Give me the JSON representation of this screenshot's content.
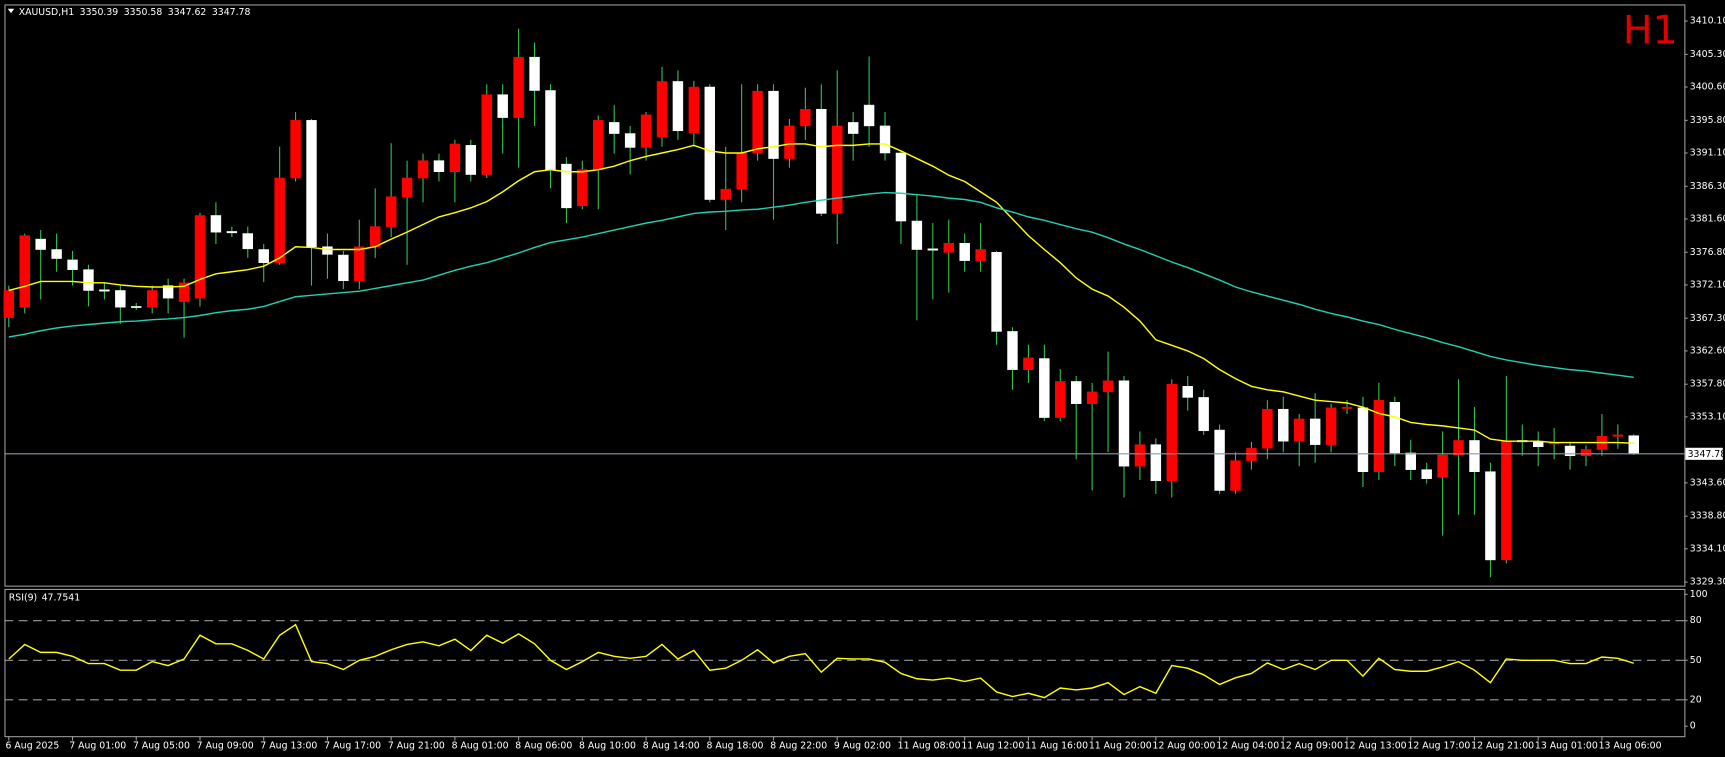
{
  "chart_data": [
    {
      "type": "candlestick",
      "title": "XAUUSD,H1",
      "timeframe_badge": "H1",
      "categories": [
        "6 Aug 2025",
        null,
        null,
        null,
        "7 Aug 01:00",
        null,
        null,
        null,
        "7 Aug 05:00",
        null,
        null,
        null,
        "7 Aug 09:00",
        null,
        null,
        null,
        "7 Aug 13:00",
        null,
        null,
        null,
        "7 Aug 17:00",
        null,
        null,
        null,
        "7 Aug 21:00",
        null,
        null,
        null,
        "8 Aug 01:00",
        null,
        null,
        null,
        "8 Aug 06:00",
        null,
        null,
        null,
        "8 Aug 10:00",
        null,
        null,
        null,
        "8 Aug 14:00",
        null,
        null,
        null,
        "8 Aug 18:00",
        null,
        null,
        null,
        "8 Aug 22:00",
        null,
        null,
        null,
        "9 Aug 02:00",
        null,
        null,
        null,
        "11 Aug 08:00",
        null,
        null,
        null,
        "11 Aug 12:00",
        null,
        null,
        null,
        "11 Aug 16:00",
        null,
        null,
        null,
        "11 Aug 20:00",
        null,
        null,
        null,
        "12 Aug 00:00",
        null,
        null,
        null,
        "12 Aug 04:00",
        null,
        null,
        null,
        "12 Aug 09:00",
        null,
        null,
        null,
        "12 Aug 13:00",
        null,
        null,
        null,
        "12 Aug 17:00",
        null,
        null,
        null,
        "12 Aug 21:00",
        null,
        null,
        null,
        "13 Aug 01:00",
        null,
        null,
        null,
        "13 Aug 06:00",
        null,
        null
      ],
      "open": [
        3367.4,
        3368.9,
        3378.7,
        3377.2,
        3375.7,
        3374.3,
        3371.4,
        3371.3,
        3369,
        3368.9,
        3372,
        3369.7,
        3370.2,
        3382.1,
        3379.8,
        3379.5,
        3377.2,
        3375.3,
        3387.5,
        3395.8,
        3377.6,
        3376.4,
        3372.7,
        3377.6,
        3380.5,
        3384.8,
        3387.5,
        3390,
        3388.4,
        3392.2,
        3388,
        3399.5,
        3396.2,
        3404.9,
        3400.1,
        3389.5,
        3383.5,
        3388.7,
        3395.5,
        3393.9,
        3391.9,
        3393.4,
        3401.4,
        3394,
        3400.6,
        3384.4,
        3385.9,
        3391.1,
        3400,
        3390.3,
        3395,
        3397.4,
        3382.4,
        3395.5,
        3398,
        3395,
        3391.1,
        3381.3,
        3377.3,
        3376.8,
        3378.1,
        3375.6,
        3376.8,
        3365.4,
        3359.9,
        3361.5,
        3353,
        3358.2,
        3355,
        3356.7,
        3358.3,
        3346,
        3349.1,
        3343.9,
        3357.5,
        3355.9,
        3351.2,
        3342.5,
        3346.8,
        3348.6,
        3354.2,
        3349.6,
        3352.8,
        3349.1,
        3354.3,
        3354.4,
        3345.2,
        3355.2,
        3347.9,
        3345.5,
        3344.4,
        3347.6,
        3349.7,
        3345.2,
        3332.5,
        3349.7,
        3349.6,
        3349.2,
        3348.9,
        3347.5,
        3348.4,
        3350.3,
        3350.39
      ],
      "high": [
        3372,
        3379.5,
        3380,
        3379.5,
        3377,
        3375,
        3372.5,
        3372,
        3369.5,
        3372,
        3373,
        3373,
        3382.5,
        3384,
        3380.5,
        3380.5,
        3378,
        3392,
        3397,
        3396,
        3379.5,
        3377,
        3381.5,
        3386,
        3392.5,
        3390,
        3391,
        3391,
        3393,
        3393,
        3401,
        3401,
        3409,
        3407,
        3401,
        3390.5,
        3390,
        3396.5,
        3398,
        3395,
        3397,
        3403.5,
        3403,
        3401.5,
        3401,
        3392,
        3401,
        3401,
        3401,
        3396,
        3400.5,
        3401,
        3403,
        3397,
        3405,
        3397,
        3391.5,
        3385,
        3381,
        3381.5,
        3379.5,
        3381,
        3377,
        3366,
        3363.5,
        3363.5,
        3360,
        3359,
        3358,
        3362.5,
        3359,
        3351,
        3350,
        3358.5,
        3359,
        3357,
        3352,
        3348,
        3349.5,
        3355.5,
        3356,
        3353.5,
        3356.5,
        3355,
        3355.5,
        3356,
        3358,
        3356,
        3349.8,
        3346.5,
        3351,
        3358.5,
        3354.5,
        3346.5,
        3359,
        3352,
        3351,
        3351.5,
        3349.5,
        3349,
        3353.5,
        3352,
        3350.58
      ],
      "low": [
        3366,
        3368,
        3370,
        3374,
        3372,
        3369,
        3370,
        3366.5,
        3368.5,
        3368,
        3368,
        3364.5,
        3369,
        3378,
        3379,
        3376,
        3372.5,
        3375,
        3387,
        3372,
        3373,
        3371.5,
        3371.5,
        3376,
        3379,
        3375,
        3384,
        3387,
        3384,
        3387,
        3387.5,
        3391,
        3389,
        3395,
        3386,
        3381,
        3383,
        3383,
        3391,
        3388,
        3390,
        3392,
        3393,
        3392,
        3384,
        3380,
        3384,
        3390,
        3381.5,
        3389,
        3393,
        3382,
        3378,
        3390,
        3392,
        3390,
        3378,
        3367,
        3370,
        3371,
        3374,
        3374,
        3363.5,
        3357,
        3358,
        3352.5,
        3352.5,
        3347,
        3342.5,
        3348,
        3341.5,
        3344,
        3342,
        3341.5,
        3354,
        3350.5,
        3342,
        3342,
        3345.5,
        3347,
        3348,
        3346,
        3346.5,
        3348,
        3353.5,
        3343,
        3344,
        3346,
        3344,
        3343.5,
        3336,
        3339,
        3339,
        3330,
        3332,
        3347.5,
        3346,
        3347,
        3345.5,
        3346,
        3347.5,
        3348.5,
        3347.62
      ],
      "close": [
        3371.3,
        3379.2,
        3377.2,
        3375.9,
        3374.3,
        3371.3,
        3371.2,
        3368.9,
        3368.9,
        3371.3,
        3370.2,
        3372.4,
        3382.1,
        3379.7,
        3379.6,
        3377.3,
        3375.3,
        3387.5,
        3395.8,
        3377.6,
        3376.5,
        3372.7,
        3377.6,
        3380.5,
        3384.8,
        3387.5,
        3390,
        3388.4,
        3392.4,
        3388,
        3399.5,
        3396.2,
        3404.9,
        3400.1,
        3388.7,
        3383.2,
        3388.7,
        3395.8,
        3393.9,
        3391.9,
        3396.6,
        3401.4,
        3394.3,
        3400.6,
        3384.4,
        3385.9,
        3391.1,
        3400,
        3390.3,
        3395,
        3397.4,
        3382.4,
        3395,
        3393.9,
        3395,
        3391.1,
        3381.3,
        3377.2,
        3377.1,
        3378.1,
        3375.6,
        3377.2,
        3365.4,
        3359.9,
        3361.6,
        3353,
        3358.2,
        3355,
        3356.7,
        3358.3,
        3346,
        3349.1,
        3343.9,
        3357.8,
        3355.9,
        3351.1,
        3342.5,
        3346.8,
        3348.6,
        3354.2,
        3349.6,
        3352.8,
        3349.1,
        3354.4,
        3354.5,
        3345.2,
        3355.5,
        3347.9,
        3345.5,
        3344.2,
        3347.6,
        3349.7,
        3345.2,
        3332.5,
        3349.6,
        3349.5,
        3348.8,
        3349.4,
        3347.5,
        3348.4,
        3350.3,
        3350.5,
        3347.78
      ],
      "up_color": "#ff0000",
      "down_color": "#ffffff",
      "wick_color": "#33c24d",
      "series": [
        {
          "color": "#ffff00",
          "values": [
            3371.3,
            3371.9,
            3372.6,
            3372.6,
            3372.6,
            3372.4,
            3372.4,
            3372.1,
            3371.9,
            3371.8,
            3371.8,
            3371.9,
            3372.9,
            3373.7,
            3374.0,
            3374.3,
            3374.8,
            3376.0,
            3377.6,
            3377.5,
            3377.2,
            3377.2,
            3377.2,
            3377.6,
            3378.7,
            3379.7,
            3380.8,
            3381.9,
            3382.5,
            3383.2,
            3384.1,
            3385.5,
            3387.1,
            3388.4,
            3388.7,
            3388.4,
            3388.4,
            3388.7,
            3389.2,
            3390.0,
            3390.6,
            3391.1,
            3391.6,
            3392.2,
            3391.4,
            3391.1,
            3391.1,
            3391.7,
            3392.0,
            3392.4,
            3392.4,
            3392.0,
            3392.2,
            3392.2,
            3392.4,
            3392.4,
            3391.4,
            3390.3,
            3389.2,
            3387.9,
            3387.0,
            3385.5,
            3384.0,
            3381.6,
            3379.2,
            3377.2,
            3375.3,
            3373.1,
            3371.5,
            3370.5,
            3368.9,
            3366.9,
            3364.2,
            3363.4,
            3362.6,
            3361.5,
            3359.9,
            3358.6,
            3357.5,
            3357.0,
            3356.7,
            3356.1,
            3355.5,
            3355.3,
            3355.1,
            3354.5,
            3353.6,
            3353.1,
            3352.3,
            3352.0,
            3351.8,
            3351.5,
            3351.2,
            3349.9,
            3349.6,
            3349.6,
            3349.6,
            3349.4,
            3349.4,
            3349.4,
            3349.4,
            3349.4,
            3349.3
          ]
        },
        {
          "color": "#20d0b0",
          "values": [
            3364.6,
            3365.0,
            3365.5,
            3365.9,
            3366.2,
            3366.4,
            3366.6,
            3366.8,
            3366.9,
            3367.1,
            3367.2,
            3367.4,
            3367.7,
            3368.1,
            3368.4,
            3368.6,
            3369.0,
            3369.7,
            3370.4,
            3370.6,
            3370.8,
            3371.0,
            3371.2,
            3371.6,
            3372.0,
            3372.4,
            3372.8,
            3373.5,
            3374.2,
            3374.8,
            3375.3,
            3376.0,
            3376.7,
            3377.5,
            3378.2,
            3378.6,
            3379.0,
            3379.5,
            3380.0,
            3380.5,
            3381.0,
            3381.4,
            3381.9,
            3382.4,
            3382.6,
            3382.7,
            3382.9,
            3383.0,
            3383.3,
            3383.6,
            3384.0,
            3384.3,
            3384.6,
            3384.9,
            3385.2,
            3385.4,
            3385.3,
            3385.1,
            3384.9,
            3384.6,
            3384.4,
            3384.0,
            3383.2,
            3382.6,
            3381.9,
            3381.4,
            3380.8,
            3380.2,
            3379.7,
            3378.9,
            3378.0,
            3377.2,
            3376.3,
            3375.4,
            3374.6,
            3373.7,
            3372.8,
            3371.8,
            3371.1,
            3370.5,
            3369.9,
            3369.3,
            3368.6,
            3368.0,
            3367.5,
            3366.9,
            3366.4,
            3365.7,
            3365.1,
            3364.5,
            3363.8,
            3363.2,
            3362.5,
            3361.8,
            3361.3,
            3360.9,
            3360.5,
            3360.2,
            3359.9,
            3359.7,
            3359.4,
            3359.1,
            3358.8
          ]
        }
      ],
      "ylim": [
        3328.8,
        3412.5
      ],
      "yticks": [
        {
          "value": 3410.1,
          "label": "3410.10"
        },
        {
          "value": 3405.3,
          "label": "3405.30"
        },
        {
          "value": 3400.6,
          "label": "3400.60"
        },
        {
          "value": 3395.8,
          "label": "3395.80"
        },
        {
          "value": 3391.1,
          "label": "3391.10"
        },
        {
          "value": 3386.3,
          "label": "3386.30"
        },
        {
          "value": 3381.6,
          "label": "3381.60"
        },
        {
          "value": 3376.8,
          "label": "3376.80"
        },
        {
          "value": 3372.1,
          "label": "3372.10"
        },
        {
          "value": 3367.3,
          "label": "3367.30"
        },
        {
          "value": 3362.6,
          "label": "3362.60"
        },
        {
          "value": 3357.8,
          "label": "3357.80"
        },
        {
          "value": 3353.1,
          "label": "3353.10"
        },
        {
          "value": 3343.6,
          "label": "3343.60"
        },
        {
          "value": 3338.8,
          "label": "3338.80"
        },
        {
          "value": 3334.1,
          "label": "3334.10"
        },
        {
          "value": 3329.3,
          "label": "3329.30"
        }
      ]
    },
    {
      "type": "line",
      "title": "RSI(9)",
      "color": "#ffff00",
      "values": [
        51,
        62,
        56,
        56,
        53,
        47.5,
        47.5,
        42.5,
        42.5,
        49,
        46,
        51,
        69,
        62.5,
        62.5,
        57.5,
        51,
        69,
        77,
        49,
        47.5,
        43,
        50,
        53,
        58,
        62,
        64,
        61,
        66,
        57.5,
        69,
        63,
        70,
        62.5,
        50,
        43,
        49,
        56,
        53,
        51.5,
        53,
        62,
        51,
        57.5,
        42.5,
        44,
        50,
        58,
        48,
        53,
        55,
        41,
        51.5,
        51,
        51,
        48.5,
        40,
        36,
        35,
        36.5,
        34,
        36.5,
        26,
        22.5,
        25,
        21.7,
        29,
        27.5,
        29,
        33,
        24,
        30,
        25,
        46,
        44,
        39,
        31.7,
        36.7,
        40,
        48,
        43,
        47.5,
        43,
        50,
        50,
        38,
        51.5,
        43,
        41.7,
        41.7,
        45,
        49,
        42.5,
        33,
        51,
        50,
        50,
        50,
        47.5,
        47.5,
        52.5,
        51.5,
        47.7541
      ],
      "ylim": [
        -7.5,
        103.3
      ],
      "yticks": [
        0,
        20,
        50,
        80,
        100
      ],
      "levels": [
        20,
        50,
        80
      ]
    }
  ]
}
